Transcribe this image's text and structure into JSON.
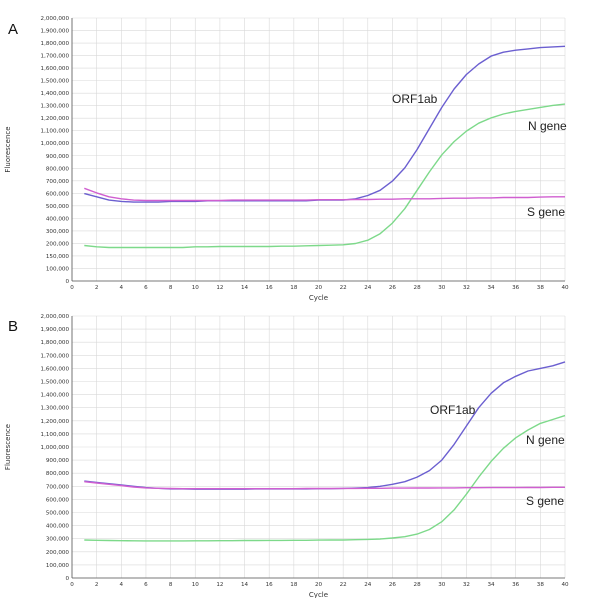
{
  "chart_data": [
    {
      "panel": "A",
      "type": "line",
      "xlabel": "Cycle",
      "ylabel": "Fluorescence",
      "xlim": [
        0,
        40
      ],
      "ylim": [
        0,
        2000000
      ],
      "x_ticks": [
        "0",
        "2",
        "4",
        "6",
        "8",
        "10",
        "12",
        "14",
        "16",
        "18",
        "20",
        "22",
        "24",
        "26",
        "28",
        "30",
        "32",
        "34",
        "36",
        "38",
        "40"
      ],
      "y_ticks": [
        "0",
        "100,000",
        "150,000",
        "200,000",
        "300,000",
        "400,000",
        "500,000",
        "600,000",
        "700,000",
        "800,000",
        "900,000",
        "1,000,000",
        "1,100,000",
        "1,200,000",
        "1,300,000",
        "1,400,000",
        "1,500,000",
        "1,600,000",
        "1,700,000",
        "1,800,000",
        "1,900,000",
        "2,000,000"
      ],
      "grid": true,
      "series": [
        {
          "name": "ORF1ab",
          "color": "#6b5fd0",
          "x": [
            1,
            2,
            3,
            4,
            5,
            6,
            7,
            8,
            9,
            10,
            11,
            12,
            13,
            14,
            15,
            16,
            17,
            18,
            19,
            20,
            21,
            22,
            23,
            24,
            25,
            26,
            27,
            28,
            29,
            30,
            31,
            32,
            33,
            34,
            35,
            36,
            37,
            38,
            39,
            40
          ],
          "y": [
            665000,
            640000,
            615000,
            605000,
            600000,
            600000,
            600000,
            605000,
            605000,
            605000,
            610000,
            610000,
            610000,
            610000,
            610000,
            610000,
            610000,
            610000,
            610000,
            615000,
            615000,
            615000,
            625000,
            650000,
            690000,
            760000,
            860000,
            1000000,
            1160000,
            1320000,
            1460000,
            1570000,
            1650000,
            1710000,
            1740000,
            1755000,
            1765000,
            1775000,
            1780000,
            1785000
          ]
        },
        {
          "name": "N gene",
          "color": "#7dd98a",
          "x": [
            1,
            2,
            3,
            4,
            5,
            6,
            7,
            8,
            9,
            10,
            11,
            12,
            13,
            14,
            15,
            16,
            17,
            18,
            19,
            20,
            21,
            22,
            23,
            24,
            25,
            26,
            27,
            28,
            29,
            30,
            31,
            32,
            33,
            34,
            35,
            36,
            37,
            38,
            39,
            40
          ],
          "y": [
            270000,
            260000,
            255000,
            255000,
            255000,
            255000,
            255000,
            255000,
            255000,
            260000,
            260000,
            262000,
            262000,
            262000,
            262000,
            262000,
            265000,
            265000,
            268000,
            270000,
            272000,
            275000,
            285000,
            310000,
            360000,
            440000,
            550000,
            690000,
            830000,
            960000,
            1060000,
            1140000,
            1200000,
            1240000,
            1270000,
            1290000,
            1305000,
            1320000,
            1335000,
            1345000
          ]
        },
        {
          "name": "S gene",
          "color": "#d05fd0",
          "x": [
            1,
            2,
            3,
            4,
            5,
            6,
            7,
            8,
            9,
            10,
            11,
            12,
            13,
            14,
            15,
            16,
            17,
            18,
            19,
            20,
            21,
            22,
            23,
            24,
            25,
            26,
            27,
            28,
            29,
            30,
            31,
            32,
            33,
            34,
            35,
            36,
            37,
            38,
            39,
            40
          ],
          "y": [
            705000,
            670000,
            640000,
            625000,
            615000,
            612000,
            612000,
            612000,
            612000,
            612000,
            612000,
            612000,
            615000,
            615000,
            615000,
            615000,
            615000,
            615000,
            615000,
            618000,
            618000,
            618000,
            620000,
            620000,
            622000,
            622000,
            625000,
            625000,
            625000,
            628000,
            630000,
            630000,
            632000,
            632000,
            635000,
            635000,
            635000,
            638000,
            640000,
            640000
          ]
        }
      ],
      "annotations": [
        "ORF1ab",
        "N gene",
        "S gene"
      ]
    },
    {
      "panel": "B",
      "type": "line",
      "xlabel": "Cycle",
      "ylabel": "Fluorescence",
      "xlim": [
        0,
        40
      ],
      "ylim": [
        0,
        2000000
      ],
      "x_ticks": [
        "0",
        "2",
        "4",
        "6",
        "8",
        "10",
        "12",
        "14",
        "16",
        "18",
        "20",
        "22",
        "24",
        "26",
        "28",
        "30",
        "32",
        "34",
        "36",
        "38",
        "40"
      ],
      "y_ticks": [
        "0",
        "100,000",
        "200,000",
        "300,000",
        "400,000",
        "500,000",
        "600,000",
        "700,000",
        "800,000",
        "900,000",
        "1,000,000",
        "1,100,000",
        "1,200,000",
        "1,300,000",
        "1,400,000",
        "1,500,000",
        "1,600,000",
        "1,700,000",
        "1,800,000",
        "1,900,000",
        "2,000,000"
      ],
      "grid": true,
      "series": [
        {
          "name": "ORF1ab",
          "color": "#6b5fd0",
          "x": [
            1,
            2,
            3,
            4,
            5,
            6,
            7,
            8,
            9,
            10,
            11,
            12,
            13,
            14,
            15,
            16,
            17,
            18,
            19,
            20,
            21,
            22,
            23,
            24,
            25,
            26,
            27,
            28,
            29,
            30,
            31,
            32,
            33,
            34,
            35,
            36,
            37,
            38,
            39,
            40
          ],
          "y": [
            740000,
            730000,
            720000,
            710000,
            700000,
            690000,
            685000,
            680000,
            680000,
            678000,
            678000,
            678000,
            678000,
            678000,
            680000,
            680000,
            680000,
            680000,
            680000,
            682000,
            682000,
            684000,
            686000,
            690000,
            700000,
            715000,
            735000,
            770000,
            820000,
            900000,
            1020000,
            1160000,
            1300000,
            1410000,
            1490000,
            1540000,
            1580000,
            1600000,
            1620000,
            1650000
          ]
        },
        {
          "name": "N gene",
          "color": "#7dd98a",
          "x": [
            1,
            2,
            3,
            4,
            5,
            6,
            7,
            8,
            9,
            10,
            11,
            12,
            13,
            14,
            15,
            16,
            17,
            18,
            19,
            20,
            21,
            22,
            23,
            24,
            25,
            26,
            27,
            28,
            29,
            30,
            31,
            32,
            33,
            34,
            35,
            36,
            37,
            38,
            39,
            40
          ],
          "y": [
            290000,
            288000,
            286000,
            285000,
            284000,
            283000,
            283000,
            283000,
            283000,
            284000,
            284000,
            285000,
            285000,
            286000,
            286000,
            287000,
            287000,
            288000,
            288000,
            289000,
            290000,
            290000,
            292000,
            295000,
            298000,
            305000,
            315000,
            335000,
            370000,
            430000,
            520000,
            640000,
            770000,
            890000,
            990000,
            1070000,
            1130000,
            1180000,
            1210000,
            1240000
          ]
        },
        {
          "name": "S gene",
          "color": "#d05fd0",
          "x": [
            1,
            2,
            3,
            4,
            5,
            6,
            7,
            8,
            9,
            10,
            11,
            12,
            13,
            14,
            15,
            16,
            17,
            18,
            19,
            20,
            21,
            22,
            23,
            24,
            25,
            26,
            27,
            28,
            29,
            30,
            31,
            32,
            33,
            34,
            35,
            36,
            37,
            38,
            39,
            40
          ],
          "y": [
            735000,
            725000,
            715000,
            705000,
            695000,
            688000,
            685000,
            683000,
            682000,
            682000,
            682000,
            682000,
            682000,
            682000,
            682000,
            682000,
            682000,
            682000,
            683000,
            683000,
            683000,
            684000,
            684000,
            685000,
            685000,
            686000,
            686000,
            687000,
            687000,
            688000,
            688000,
            689000,
            689000,
            690000,
            690000,
            690000,
            691000,
            691000,
            692000,
            692000
          ]
        }
      ],
      "annotations": [
        "ORF1ab",
        "N gene",
        "S gene"
      ]
    }
  ]
}
